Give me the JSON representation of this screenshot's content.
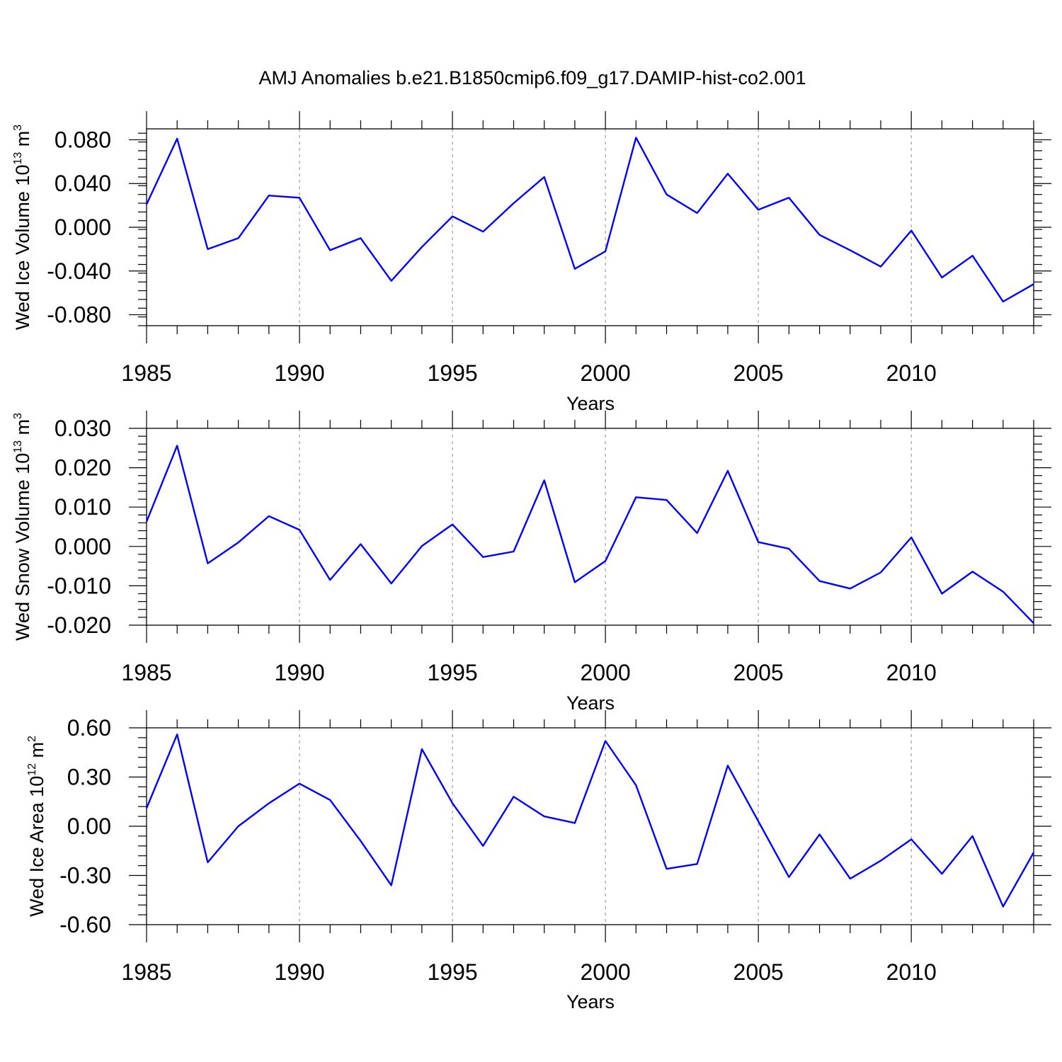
{
  "title": "AMJ Anomalies b.e21.B1850cmip6.f09_g17.DAMIP-hist-co2.001",
  "chart_data": [
    {
      "type": "line",
      "ylabel": {
        "text": "Wed Ice Volume 10",
        "sup": "13",
        "unit": " m",
        "unit_sup": "3"
      },
      "xlabel": "Years",
      "xlim": [
        1985,
        2014
      ],
      "ylim": [
        -0.09,
        0.09
      ],
      "yticks": [
        -0.08,
        -0.04,
        0.0,
        0.04,
        0.08
      ],
      "ytick_labels": [
        "-0.080",
        "-0.040",
        "0.000",
        "0.040",
        "0.080"
      ],
      "xticks": [
        1985,
        1990,
        1995,
        2000,
        2005,
        2010
      ],
      "xtick_labels": [
        "1985",
        "1990",
        "1995",
        "2000",
        "2005",
        "2010"
      ],
      "grid": "dashed vertical lines at major x ticks",
      "color": "#0000ff",
      "x": [
        1985,
        1986,
        1987,
        1988,
        1989,
        1990,
        1991,
        1992,
        1993,
        1994,
        1995,
        1996,
        1997,
        1998,
        1999,
        2000,
        2001,
        2002,
        2003,
        2004,
        2005,
        2006,
        2007,
        2008,
        2009,
        2010,
        2011,
        2012,
        2013,
        2014
      ],
      "values": [
        0.021,
        0.081,
        -0.02,
        -0.01,
        0.029,
        0.027,
        -0.021,
        -0.01,
        -0.049,
        -0.018,
        0.01,
        -0.004,
        0.022,
        0.046,
        -0.038,
        -0.022,
        0.082,
        0.03,
        0.013,
        0.049,
        0.016,
        0.027,
        -0.007,
        -0.021,
        -0.036,
        -0.003,
        -0.046,
        -0.026,
        -0.068,
        -0.052
      ]
    },
    {
      "type": "line",
      "ylabel": {
        "text": "Wed Snow Volume 10",
        "sup": "13",
        "unit": " m",
        "unit_sup": "3"
      },
      "xlabel": "Years",
      "xlim": [
        1985,
        2014
      ],
      "ylim": [
        -0.02,
        0.03
      ],
      "yticks": [
        -0.02,
        -0.01,
        0.0,
        0.01,
        0.02,
        0.03
      ],
      "ytick_labels": [
        "-0.020",
        "-0.010",
        "0.000",
        "0.010",
        "0.020",
        "0.030"
      ],
      "xticks": [
        1985,
        1990,
        1995,
        2000,
        2005,
        2010
      ],
      "xtick_labels": [
        "1985",
        "1990",
        "1995",
        "2000",
        "2005",
        "2010"
      ],
      "grid": "dashed vertical lines at major x ticks",
      "color": "#0000ff",
      "x": [
        1985,
        1986,
        1987,
        1988,
        1989,
        1990,
        1991,
        1992,
        1993,
        1994,
        1995,
        1996,
        1997,
        1998,
        1999,
        2000,
        2001,
        2002,
        2003,
        2004,
        2005,
        2006,
        2007,
        2008,
        2009,
        2010,
        2011,
        2012,
        2013,
        2014
      ],
      "values": [
        0.0063,
        0.0256,
        -0.0043,
        0.001,
        0.0077,
        0.0042,
        -0.0085,
        0.0006,
        -0.0094,
        0.0001,
        0.0056,
        -0.0027,
        -0.0013,
        0.0168,
        -0.0091,
        -0.0037,
        0.0125,
        0.0118,
        0.0034,
        0.0192,
        0.0011,
        -0.0006,
        -0.0088,
        -0.0107,
        -0.0066,
        0.0023,
        -0.012,
        -0.0064,
        -0.0115,
        -0.0195
      ]
    },
    {
      "type": "line",
      "ylabel": {
        "text": "Wed Ice Area 10",
        "sup": "12",
        "unit": " m",
        "unit_sup": "2"
      },
      "xlabel": "Years",
      "xlim": [
        1985,
        2014
      ],
      "ylim": [
        -0.6,
        0.6
      ],
      "yticks": [
        -0.6,
        -0.3,
        0.0,
        0.3,
        0.6
      ],
      "ytick_labels": [
        "-0.60",
        "-0.30",
        "0.00",
        "0.30",
        "0.60"
      ],
      "xticks": [
        1985,
        1990,
        1995,
        2000,
        2005,
        2010
      ],
      "xtick_labels": [
        "1985",
        "1990",
        "1995",
        "2000",
        "2005",
        "2010"
      ],
      "grid": "dashed vertical lines at major x ticks",
      "color": "#0000ff",
      "x": [
        1985,
        1986,
        1987,
        1988,
        1989,
        1990,
        1991,
        1992,
        1993,
        1994,
        1995,
        1996,
        1997,
        1998,
        1999,
        2000,
        2001,
        2002,
        2003,
        2004,
        2005,
        2006,
        2007,
        2008,
        2009,
        2010,
        2011,
        2012,
        2013,
        2014
      ],
      "values": [
        0.11,
        0.56,
        -0.22,
        0.0,
        0.14,
        0.26,
        0.16,
        -0.09,
        -0.36,
        0.47,
        0.14,
        -0.12,
        0.18,
        0.06,
        0.02,
        0.52,
        0.25,
        -0.26,
        -0.23,
        0.37,
        0.03,
        -0.31,
        -0.05,
        -0.32,
        -0.21,
        -0.08,
        -0.29,
        -0.06,
        -0.49,
        -0.16
      ]
    }
  ]
}
